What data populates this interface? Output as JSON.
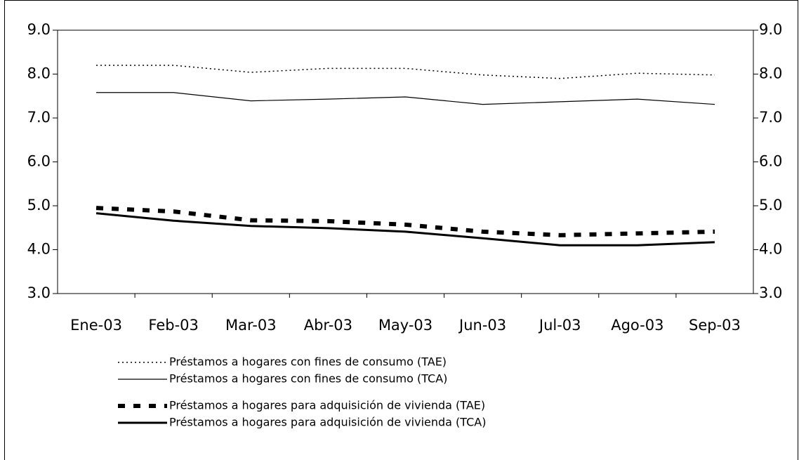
{
  "chart_data": {
    "type": "line",
    "categories": [
      "Ene-03",
      "Feb-03",
      "Mar-03",
      "Abr-03",
      "May-03",
      "Jun-03",
      "Jul-03",
      "Ago-03",
      "Sep-03"
    ],
    "series": [
      {
        "name": "Préstamos a hogares con fines de consumo (TAE)",
        "color": "#000000",
        "style": "dotted",
        "width": 1.5,
        "values": [
          8.2,
          8.2,
          8.04,
          8.13,
          8.13,
          7.98,
          7.9,
          8.02,
          7.98
        ]
      },
      {
        "name": "Préstamos a hogares con fines de consumo (TCA)",
        "color": "#000000",
        "style": "solid",
        "width": 1.2,
        "values": [
          7.58,
          7.58,
          7.39,
          7.43,
          7.48,
          7.31,
          7.37,
          7.43,
          7.31
        ]
      },
      {
        "name": "Préstamos a hogares para adquisición de vivienda (TAE)",
        "color": "#000000",
        "style": "dashed",
        "width": 6,
        "values": [
          4.95,
          4.87,
          4.67,
          4.65,
          4.57,
          4.41,
          4.33,
          4.37,
          4.41
        ]
      },
      {
        "name": "Préstamos a hogares para adquisición de vivienda (TCA)",
        "color": "#000000",
        "style": "solid",
        "width": 3,
        "values": [
          4.83,
          4.66,
          4.54,
          4.49,
          4.41,
          4.26,
          4.1,
          4.1,
          4.17
        ]
      }
    ],
    "ylim": [
      3,
      9
    ],
    "yticks": [
      {
        "value": 3,
        "label": "3.0"
      },
      {
        "value": 4,
        "label": "4.0"
      },
      {
        "value": 5,
        "label": "5.0"
      },
      {
        "value": 6,
        "label": "6.0"
      },
      {
        "value": 7,
        "label": "7.0"
      },
      {
        "value": 8,
        "label": "8.0"
      },
      {
        "value": 9,
        "label": "9.0"
      }
    ],
    "y2lim": [
      3,
      9
    ],
    "y2ticks": [
      {
        "value": 3,
        "label": "3.0"
      },
      {
        "value": 4,
        "label": "4.0"
      },
      {
        "value": 5,
        "label": "5.0"
      },
      {
        "value": 6,
        "label": "6.0"
      },
      {
        "value": 7,
        "label": "7.0"
      },
      {
        "value": 8,
        "label": "8.0"
      },
      {
        "value": 9,
        "label": "9.0"
      }
    ],
    "legend": "bottom",
    "grid": false
  }
}
